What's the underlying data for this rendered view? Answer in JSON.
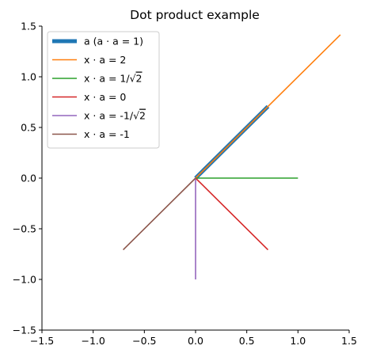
{
  "chart_data": {
    "type": "line",
    "title": "Dot product example",
    "xlabel": "",
    "ylabel": "",
    "xlim": [
      -1.5,
      1.5
    ],
    "ylim": [
      -1.5,
      1.5
    ],
    "x_ticks": [
      -1.5,
      -1.0,
      -0.5,
      0.0,
      0.5,
      1.0,
      1.5
    ],
    "y_ticks": [
      -1.5,
      -1.0,
      -0.5,
      0.0,
      0.5,
      1.0,
      1.5
    ],
    "x_tick_labels": [
      "−1.5",
      "−1.0",
      "−0.5",
      "0.0",
      "0.5",
      "1.0",
      "1.5"
    ],
    "y_tick_labels": [
      "−1.5",
      "−1.0",
      "−0.5",
      "0.0",
      "0.5",
      "1.0",
      "1.5"
    ],
    "grid": false,
    "legend_position": "upper-left",
    "series": [
      {
        "name": "a  (a · a = 1)",
        "label_prefix": "a  (a · a = 1)",
        "label_sqrt": "",
        "color": "#1f77b4",
        "emphasis": "thick",
        "x": [
          0,
          0.7071
        ],
        "y": [
          0,
          0.7071
        ]
      },
      {
        "name": "x · a = 2",
        "label_prefix": "x · a = 2",
        "label_sqrt": "",
        "color": "#ff7f0e",
        "emphasis": "normal",
        "x": [
          0,
          1.4142
        ],
        "y": [
          0,
          1.4142
        ]
      },
      {
        "name": "x · a = 1/√2",
        "label_prefix": "x · a = 1/",
        "label_sqrt": "2",
        "color": "#2ca02c",
        "emphasis": "normal",
        "x": [
          0,
          1.0
        ],
        "y": [
          0,
          0.0
        ]
      },
      {
        "name": "x · a = 0",
        "label_prefix": "x · a = 0",
        "label_sqrt": "",
        "color": "#d62728",
        "emphasis": "normal",
        "x": [
          0,
          0.7071
        ],
        "y": [
          0,
          -0.7071
        ]
      },
      {
        "name": "x · a = -1/√2",
        "label_prefix": "x · a = -1/",
        "label_sqrt": "2",
        "color": "#9467bd",
        "emphasis": "normal",
        "x": [
          0,
          0.0
        ],
        "y": [
          0,
          -1.0
        ]
      },
      {
        "name": "x · a = -1",
        "label_prefix": "x · a = -1",
        "label_sqrt": "",
        "color": "#8c564b",
        "emphasis": "normal",
        "x": [
          0,
          -0.7071
        ],
        "y": [
          0,
          -0.7071
        ]
      }
    ]
  }
}
